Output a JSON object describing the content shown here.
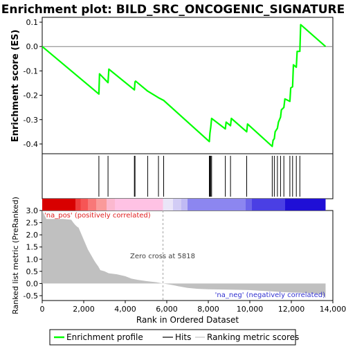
{
  "chart_data": {
    "type": "line",
    "title": "Enrichment plot: BILD_SRC_ONCOGENIC_SIGNATURE",
    "top_panel": {
      "ylabel": "Enrichment score (ES)",
      "ylim": [
        -0.44,
        0.12
      ],
      "yticks": [
        0.1,
        0.0,
        -0.1,
        -0.2,
        -0.3,
        -0.4
      ],
      "ytick_labels": [
        "0.1",
        "0.0",
        "-0.1",
        "-0.2",
        "-0.3",
        "-0.4"
      ],
      "series": [
        {
          "name": "Enrichment profile",
          "color": "#00ff00",
          "x": [
            0,
            2730,
            2760,
            3170,
            3210,
            4440,
            4470,
            4500,
            5080,
            5600,
            5850,
            8050,
            8080,
            8120,
            8160,
            8820,
            8860,
            9070,
            9110,
            9850,
            9890,
            11080,
            11120,
            11180,
            11220,
            11330,
            11380,
            11480,
            11520,
            11640,
            11690,
            11930,
            11970,
            12060,
            12100,
            12240,
            12280,
            12410,
            12450,
            13650
          ],
          "y": [
            0.0,
            -0.195,
            -0.112,
            -0.148,
            -0.093,
            -0.178,
            -0.145,
            -0.142,
            -0.183,
            -0.21,
            -0.221,
            -0.39,
            -0.355,
            -0.33,
            -0.295,
            -0.338,
            -0.31,
            -0.325,
            -0.295,
            -0.35,
            -0.318,
            -0.41,
            -0.385,
            -0.378,
            -0.35,
            -0.335,
            -0.31,
            -0.29,
            -0.26,
            -0.25,
            -0.215,
            -0.225,
            -0.17,
            -0.165,
            -0.075,
            -0.085,
            -0.02,
            -0.02,
            0.09,
            0.0
          ]
        }
      ]
    },
    "hits": {
      "name": "Hits",
      "x": [
        2730,
        3170,
        4440,
        4470,
        5080,
        5600,
        5850,
        8050,
        8080,
        8120,
        8160,
        8820,
        9070,
        9850,
        11080,
        11180,
        11330,
        11480,
        11640,
        11930,
        12060,
        12240,
        12410
      ]
    },
    "color_bar": {
      "segments": [
        {
          "from": 0,
          "to": 1600,
          "color": "#d80000"
        },
        {
          "from": 1600,
          "to": 1850,
          "color": "#ee3b3b"
        },
        {
          "from": 1850,
          "to": 2200,
          "color": "#f65555"
        },
        {
          "from": 2200,
          "to": 2600,
          "color": "#f87878"
        },
        {
          "from": 2600,
          "to": 3100,
          "color": "#fa9a9a"
        },
        {
          "from": 3100,
          "to": 3500,
          "color": "#fbb8cf"
        },
        {
          "from": 3500,
          "to": 5818,
          "color": "#ffc2e4"
        },
        {
          "from": 5818,
          "to": 6300,
          "color": "#eae5f8"
        },
        {
          "from": 6300,
          "to": 6700,
          "color": "#d2ccf5"
        },
        {
          "from": 6700,
          "to": 7000,
          "color": "#c0baf4"
        },
        {
          "from": 7000,
          "to": 9800,
          "color": "#8c86f0"
        },
        {
          "from": 9800,
          "to": 10100,
          "color": "#6c64ea"
        },
        {
          "from": 10100,
          "to": 11700,
          "color": "#4a3fe4"
        },
        {
          "from": 11700,
          "to": 13650,
          "color": "#1f0fd6"
        }
      ]
    },
    "bottom_panel": {
      "ylabel": "Ranked list metric (PreRanked)",
      "xlabel": "Rank in Ordered Dataset",
      "xlim": [
        0,
        14000
      ],
      "ylim": [
        -0.7,
        3.0
      ],
      "yticks": [
        3.0,
        2.5,
        2.0,
        1.5,
        1.0,
        0.5,
        0.0,
        -0.5
      ],
      "ytick_labels": [
        "3.0",
        "2.5",
        "2.0",
        "1.5",
        "1.0",
        "0.5",
        "0.0",
        "-0.5"
      ],
      "xticks": [
        0,
        2000,
        4000,
        6000,
        8000,
        10000,
        12000,
        14000
      ],
      "xtick_labels": [
        "0",
        "2,000",
        "4,000",
        "6,000",
        "8,000",
        "10,000",
        "12,000",
        "14,000"
      ],
      "metric": {
        "name": "Ranking metric scores",
        "color": "#c0c0c0",
        "x": [
          0,
          200,
          600,
          1000,
          1400,
          1500,
          1600,
          1700,
          1750,
          1800,
          1900,
          2000,
          2100,
          2200,
          2300,
          2400,
          2500,
          2600,
          2700,
          2800,
          3000,
          3200,
          3600,
          4000,
          4300,
          4600,
          5000,
          5500,
          5818,
          6200,
          6600,
          7000,
          7500,
          8000,
          9000,
          10000,
          10500,
          11000,
          11500,
          12000,
          12500,
          13000,
          13300,
          13450,
          13550,
          13650
        ],
        "y": [
          3.0,
          2.65,
          2.65,
          2.65,
          2.62,
          2.5,
          2.4,
          2.32,
          2.3,
          2.2,
          2.0,
          1.8,
          1.6,
          1.4,
          1.25,
          1.1,
          0.95,
          0.82,
          0.7,
          0.55,
          0.5,
          0.42,
          0.38,
          0.3,
          0.2,
          0.15,
          0.1,
          0.05,
          0.0,
          -0.05,
          -0.12,
          -0.18,
          -0.22,
          -0.24,
          -0.25,
          -0.27,
          -0.3,
          -0.32,
          -0.35,
          -0.37,
          -0.38,
          -0.4,
          -0.42,
          -0.45,
          -0.5,
          -0.6
        ]
      },
      "pos_label": "'na_pos' (positively correlated)",
      "neg_label": "'na_neg' (negatively correlated)",
      "zero_cross_label": "Zero cross at 5818",
      "zero_cross_x": 5818
    },
    "legend": {
      "items": [
        {
          "label": "Enrichment profile",
          "color": "#00ff00"
        },
        {
          "label": "Hits",
          "color": "#000000"
        },
        {
          "label": "Ranking metric scores",
          "color": "#c0c0c0"
        }
      ]
    }
  }
}
